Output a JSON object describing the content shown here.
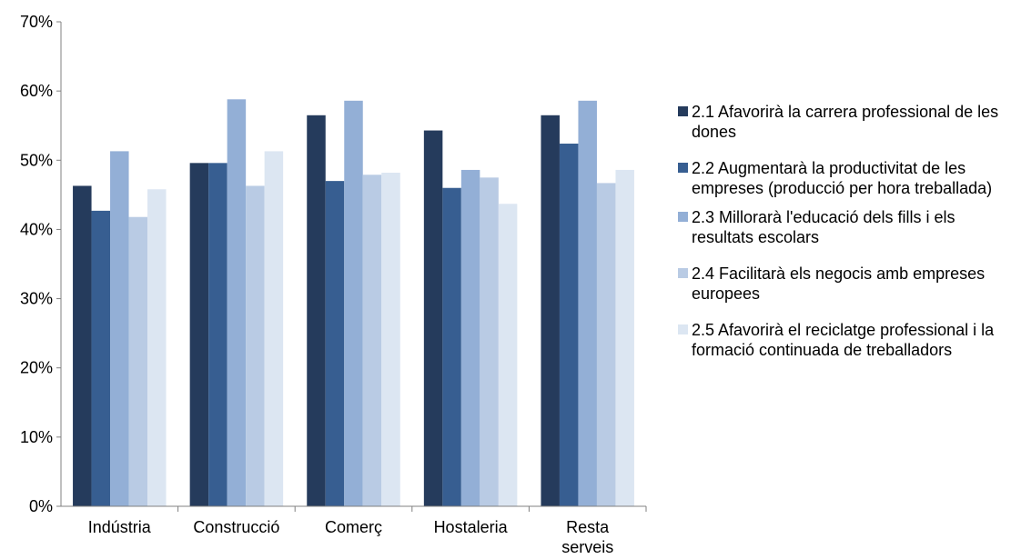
{
  "chart_data": {
    "type": "bar",
    "categories": [
      "Indústria",
      "Construcció",
      "Comerç",
      "Hostaleria",
      "Resta serveis"
    ],
    "category_lines": [
      [
        "Indústria"
      ],
      [
        "Construcció"
      ],
      [
        "Comerç"
      ],
      [
        "Hostaleria"
      ],
      [
        "Resta",
        "serveis"
      ]
    ],
    "series": [
      {
        "name": "2.1 Afavorirà la carrera professional de les dones",
        "color": "#253b5c",
        "values": [
          46.3,
          49.6,
          56.5,
          54.3,
          56.5
        ]
      },
      {
        "name": "2.2 Augmentarà la productivitat de les empreses (producció per hora treballada)",
        "color": "#375e91",
        "values": [
          42.7,
          49.6,
          47.0,
          46.0,
          52.4
        ]
      },
      {
        "name": "2.3 Millorarà l'educació dels fills i els resultats escolars",
        "color": "#93afd6",
        "values": [
          51.3,
          58.8,
          58.6,
          48.6,
          58.6
        ]
      },
      {
        "name": "2.4 Facilitarà els negocis amb empreses europees",
        "color": "#b9cbe4",
        "values": [
          41.8,
          46.3,
          47.9,
          47.5,
          46.7
        ]
      },
      {
        "name": "2.5 Afavorirà el reciclatge professional i la formació continuada de treballadors",
        "color": "#dce6f2",
        "values": [
          45.8,
          51.3,
          48.2,
          43.7,
          48.6
        ]
      }
    ],
    "y_ticks": [
      "0%",
      "10%",
      "20%",
      "30%",
      "40%",
      "50%",
      "60%",
      "70%"
    ],
    "ylim": [
      0,
      70
    ],
    "grid": false,
    "legend_position": "right"
  }
}
